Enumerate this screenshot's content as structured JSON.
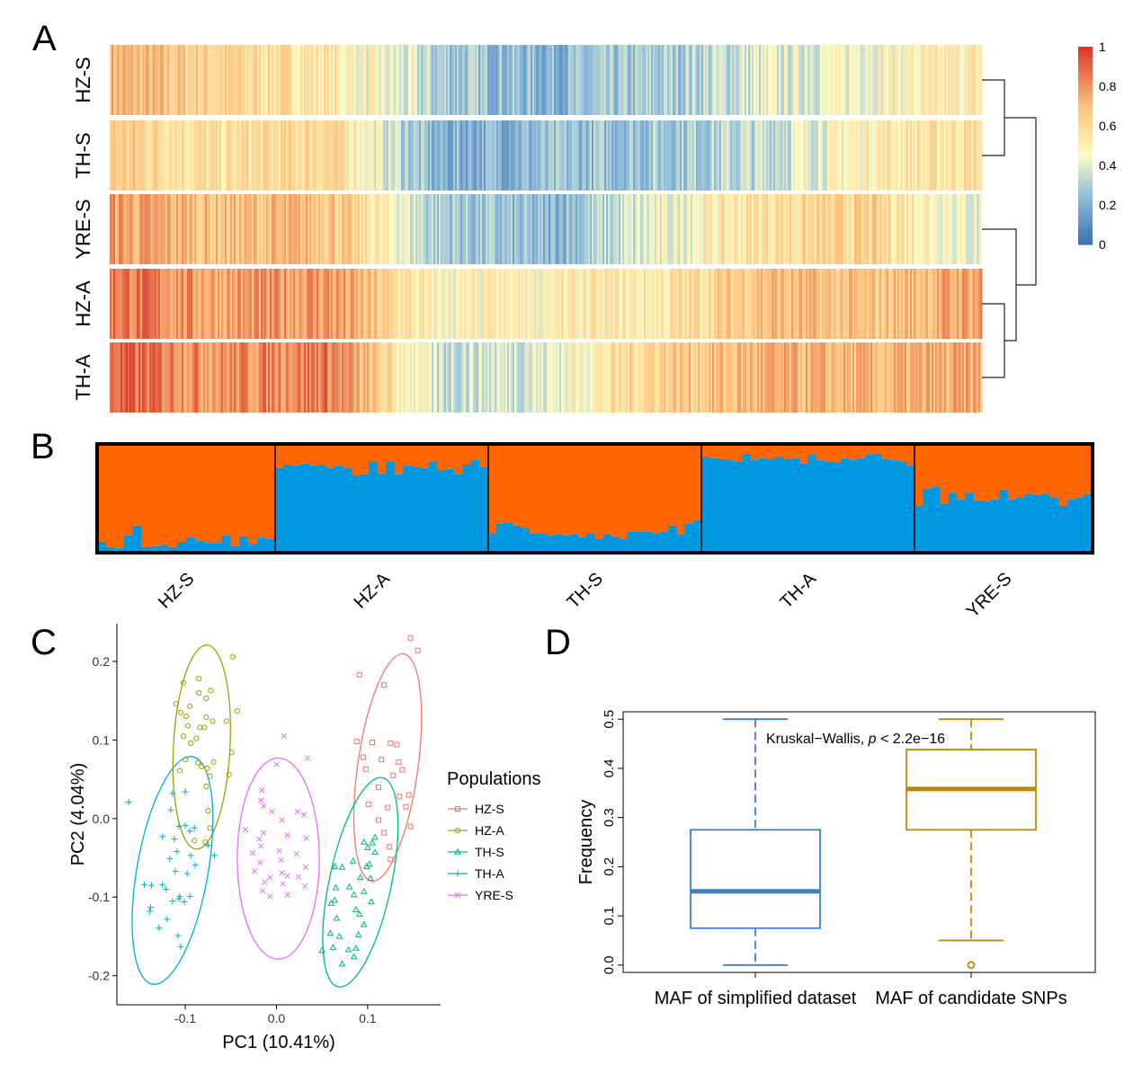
{
  "panel_letters": {
    "a": "A",
    "b": "B",
    "c": "C",
    "d": "D"
  },
  "chart_data": [
    {
      "panel": "A",
      "type": "heatmap",
      "rows": [
        "HZ-S",
        "TH-S",
        "YRE-S",
        "HZ-A",
        "TH-A"
      ],
      "colorbar": {
        "min": 0,
        "max": 1,
        "ticks": [
          "0",
          "0.2",
          "0.4",
          "0.6",
          "0.8",
          "1"
        ]
      },
      "colors": {
        "low": "#3b6fb0",
        "mid": "#fdfbc4",
        "high": "#d7352a"
      },
      "dendrogram": "((HZ-S, TH-S), (YRE-S, (HZ-A, TH-A)))",
      "segment_level_profiles": {
        "HZ-S": [
          0.72,
          0.62,
          0.54,
          0.3,
          0.22,
          0.28,
          0.38,
          0.46,
          0.52
        ],
        "TH-S": [
          0.66,
          0.55,
          0.62,
          0.2,
          0.24,
          0.28,
          0.34,
          0.52,
          0.58
        ],
        "YRE-S": [
          0.78,
          0.68,
          0.7,
          0.3,
          0.22,
          0.4,
          0.58,
          0.62,
          0.4
        ],
        "HZ-A": [
          0.88,
          0.76,
          0.8,
          0.46,
          0.5,
          0.52,
          0.7,
          0.66,
          0.78
        ],
        "TH-A": [
          0.9,
          0.8,
          0.86,
          0.36,
          0.4,
          0.64,
          0.72,
          0.7,
          0.74
        ]
      }
    },
    {
      "panel": "B",
      "type": "bar",
      "stacked": true,
      "groups": [
        "HZ-S",
        "HZ-A",
        "TH-S",
        "TH-A",
        "YRE-S"
      ],
      "series_colors": {
        "blue": "#0098e0",
        "orange": "#ff6600"
      },
      "blue_fraction": {
        "HZ-S": [
          0.1,
          0.05,
          0.04,
          0.16,
          0.25,
          0.05,
          0.06,
          0.07,
          0.05,
          0.1,
          0.14,
          0.11,
          0.09,
          0.09,
          0.16,
          0.06,
          0.15,
          0.08,
          0.14,
          0.13
        ],
        "HZ-A": [
          0.78,
          0.81,
          0.8,
          0.82,
          0.8,
          0.81,
          0.78,
          0.8,
          0.78,
          0.71,
          0.72,
          0.84,
          0.73,
          0.84,
          0.72,
          0.8,
          0.79,
          0.78,
          0.84,
          0.76,
          0.77,
          0.72,
          0.81,
          0.85,
          0.79
        ],
        "TH-S": [
          0.18,
          0.27,
          0.28,
          0.25,
          0.23,
          0.18,
          0.18,
          0.16,
          0.17,
          0.16,
          0.17,
          0.14,
          0.18,
          0.13,
          0.17,
          0.15,
          0.13,
          0.19,
          0.19,
          0.19,
          0.18,
          0.19,
          0.25,
          0.17,
          0.27,
          0.3
        ],
        "TH-A": [
          0.88,
          0.87,
          0.86,
          0.85,
          0.84,
          0.91,
          0.85,
          0.87,
          0.86,
          0.88,
          0.86,
          0.87,
          0.82,
          0.9,
          0.85,
          0.84,
          0.83,
          0.87,
          0.85,
          0.87,
          0.9,
          0.91,
          0.86,
          0.85,
          0.84,
          0.8
        ],
        "YRE-S": [
          0.43,
          0.59,
          0.61,
          0.45,
          0.55,
          0.49,
          0.55,
          0.48,
          0.47,
          0.49,
          0.58,
          0.49,
          0.51,
          0.54,
          0.53,
          0.54,
          0.51,
          0.43,
          0.49,
          0.51,
          0.54
        ]
      }
    },
    {
      "panel": "C",
      "type": "scatter",
      "xlabel": "PC1 (10.41%)",
      "ylabel": "PC2 (4.04%)",
      "xlim": [
        -0.175,
        0.18
      ],
      "ylim": [
        -0.237,
        0.248
      ],
      "xticks": [
        {
          "v": -0.1,
          "t": "-0.1"
        },
        {
          "v": 0,
          "t": "0.0"
        },
        {
          "v": 0.1,
          "t": "0.1"
        }
      ],
      "yticks": [
        {
          "v": -0.2,
          "t": "-0.2"
        },
        {
          "v": -0.1,
          "t": "-0.1"
        },
        {
          "v": 0,
          "t": "0.0"
        },
        {
          "v": 0.1,
          "t": "0.1"
        },
        {
          "v": 0.2,
          "t": "0.2"
        }
      ],
      "legend_title": "Populations",
      "legend_position": "right",
      "series": [
        {
          "name": "HZ-S",
          "color": "#f0756b",
          "marker": "square",
          "ellipse": {
            "cx": 0.122,
            "cy": 0.065,
            "rx": 0.033,
            "ry": 0.146,
            "angle": 8
          },
          "points": [
            [
              0.147,
              0.23
            ],
            [
              0.155,
              0.214
            ],
            [
              0.091,
              0.183
            ],
            [
              0.118,
              0.17
            ],
            [
              0.088,
              0.098
            ],
            [
              0.105,
              0.097
            ],
            [
              0.125,
              0.096
            ],
            [
              0.132,
              0.094
            ],
            [
              0.095,
              0.078
            ],
            [
              0.115,
              0.075
            ],
            [
              0.134,
              0.072
            ],
            [
              0.098,
              0.063
            ],
            [
              0.138,
              0.062
            ],
            [
              0.128,
              0.055
            ],
            [
              0.112,
              0.04
            ],
            [
              0.145,
              0.03
            ],
            [
              0.135,
              0.028
            ],
            [
              0.101,
              0.018
            ],
            [
              0.122,
              0.014
            ],
            [
              0.142,
              0.015
            ],
            [
              0.112,
              -0.002
            ],
            [
              0.147,
              -0.01
            ],
            [
              0.118,
              -0.018
            ],
            [
              0.124,
              -0.036
            ],
            [
              0.125,
              -0.052
            ]
          ]
        },
        {
          "name": "HZ-A",
          "color": "#9fa000",
          "marker": "circle",
          "ellipse": {
            "cx": -0.082,
            "cy": 0.091,
            "rx": 0.031,
            "ry": 0.13,
            "angle": 3
          },
          "points": [
            [
              -0.048,
              0.206
            ],
            [
              -0.085,
              0.178
            ],
            [
              -0.102,
              0.173
            ],
            [
              -0.072,
              0.163
            ],
            [
              -0.085,
              0.16
            ],
            [
              -0.077,
              0.153
            ],
            [
              -0.11,
              0.146
            ],
            [
              -0.095,
              0.143
            ],
            [
              -0.105,
              0.135
            ],
            [
              -0.043,
              0.137
            ],
            [
              -0.099,
              0.13
            ],
            [
              -0.077,
              0.129
            ],
            [
              -0.07,
              0.124
            ],
            [
              -0.055,
              0.124
            ],
            [
              -0.097,
              0.118
            ],
            [
              -0.084,
              0.116
            ],
            [
              -0.079,
              0.116
            ],
            [
              -0.102,
              0.105
            ],
            [
              -0.088,
              0.102
            ],
            [
              -0.094,
              0.096
            ],
            [
              -0.049,
              0.084
            ],
            [
              -0.1,
              0.075
            ],
            [
              -0.069,
              0.072
            ],
            [
              -0.086,
              0.071
            ],
            [
              -0.082,
              0.066
            ],
            [
              -0.076,
              0.064
            ],
            [
              -0.106,
              0.061
            ],
            [
              -0.052,
              0.056
            ],
            [
              -0.073,
              0.054
            ],
            [
              -0.077,
              0.041
            ],
            [
              -0.075,
              0.01
            ],
            [
              -0.073,
              -0.012
            ],
            [
              -0.09,
              -0.028
            ],
            [
              -0.078,
              -0.03
            ]
          ]
        },
        {
          "name": "TH-S",
          "color": "#00ba78",
          "marker": "triangle",
          "ellipse": {
            "cx": 0.092,
            "cy": -0.081,
            "rx": 0.034,
            "ry": 0.136,
            "angle": 12
          },
          "points": [
            [
              0.108,
              -0.024
            ],
            [
              0.096,
              -0.03
            ],
            [
              0.105,
              -0.031
            ],
            [
              0.1,
              -0.037
            ],
            [
              0.108,
              -0.043
            ],
            [
              0.084,
              -0.054
            ],
            [
              0.102,
              -0.058
            ],
            [
              0.064,
              -0.061
            ],
            [
              0.099,
              -0.061
            ],
            [
              0.072,
              -0.062
            ],
            [
              0.092,
              -0.075
            ],
            [
              0.103,
              -0.076
            ],
            [
              0.08,
              -0.087
            ],
            [
              0.065,
              -0.088
            ],
            [
              0.096,
              -0.093
            ],
            [
              0.085,
              -0.097
            ],
            [
              0.064,
              -0.104
            ],
            [
              0.104,
              -0.106
            ],
            [
              0.06,
              -0.108
            ],
            [
              0.087,
              -0.116
            ],
            [
              0.091,
              -0.122
            ],
            [
              0.066,
              -0.127
            ],
            [
              0.096,
              -0.135
            ],
            [
              0.059,
              -0.146
            ],
            [
              0.09,
              -0.148
            ],
            [
              0.069,
              -0.15
            ],
            [
              0.062,
              -0.164
            ],
            [
              0.079,
              -0.167
            ],
            [
              0.087,
              -0.165
            ],
            [
              0.05,
              -0.168
            ],
            [
              0.085,
              -0.176
            ],
            [
              0.072,
              -0.185
            ]
          ]
        },
        {
          "name": "TH-A",
          "color": "#00aed0",
          "marker": "plus",
          "ellipse": {
            "cx": -0.114,
            "cy": -0.066,
            "rx": 0.039,
            "ry": 0.147,
            "angle": 10
          },
          "points": [
            [
              -0.162,
              0.021
            ],
            [
              -0.1,
              0.034
            ],
            [
              -0.114,
              0.032
            ],
            [
              -0.116,
              0.011
            ],
            [
              -0.1,
              -0.009
            ],
            [
              -0.09,
              -0.012
            ],
            [
              -0.107,
              -0.01
            ],
            [
              -0.095,
              -0.016
            ],
            [
              -0.125,
              -0.023
            ],
            [
              -0.112,
              -0.026
            ],
            [
              -0.075,
              -0.034
            ],
            [
              -0.109,
              -0.042
            ],
            [
              -0.094,
              -0.047
            ],
            [
              -0.068,
              -0.047
            ],
            [
              -0.117,
              -0.051
            ],
            [
              -0.089,
              -0.059
            ],
            [
              -0.111,
              -0.067
            ],
            [
              -0.098,
              -0.07
            ],
            [
              -0.137,
              -0.085
            ],
            [
              -0.125,
              -0.084
            ],
            [
              -0.145,
              -0.084
            ],
            [
              -0.121,
              -0.09
            ],
            [
              -0.106,
              -0.099
            ],
            [
              -0.095,
              -0.099
            ],
            [
              -0.107,
              -0.102
            ],
            [
              -0.114,
              -0.105
            ],
            [
              -0.101,
              -0.106
            ],
            [
              -0.138,
              -0.113
            ],
            [
              -0.139,
              -0.118
            ],
            [
              -0.12,
              -0.128
            ],
            [
              -0.129,
              -0.139
            ],
            [
              -0.108,
              -0.149
            ],
            [
              -0.105,
              -0.163
            ]
          ]
        },
        {
          "name": "YRE-S",
          "color": "#e86df2",
          "marker": "cross",
          "ellipse": {
            "cx": 0.002,
            "cy": -0.051,
            "rx": 0.045,
            "ry": 0.128,
            "angle": 0
          },
          "points": [
            [
              0.008,
              0.105
            ],
            [
              0.034,
              0.077
            ],
            [
              0.0,
              0.069
            ],
            [
              -0.016,
              0.036
            ],
            [
              -0.017,
              0.023
            ],
            [
              -0.014,
              0.016
            ],
            [
              -0.005,
              0.009
            ],
            [
              0.023,
              0.009
            ],
            [
              0.03,
              0.005
            ],
            [
              0.006,
              -0.002
            ],
            [
              -0.034,
              -0.014
            ],
            [
              -0.014,
              -0.018
            ],
            [
              0.012,
              -0.021
            ],
            [
              0.033,
              -0.025
            ],
            [
              -0.019,
              -0.026
            ],
            [
              -0.017,
              -0.035
            ],
            [
              0.003,
              -0.041
            ],
            [
              -0.026,
              -0.044
            ],
            [
              0.022,
              -0.045
            ],
            [
              0.005,
              -0.053
            ],
            [
              -0.018,
              -0.056
            ],
            [
              0.032,
              -0.062
            ],
            [
              -0.024,
              -0.067
            ],
            [
              0.006,
              -0.069
            ],
            [
              0.012,
              -0.073
            ],
            [
              0.024,
              -0.074
            ],
            [
              -0.007,
              -0.075
            ],
            [
              -0.013,
              -0.081
            ],
            [
              0.007,
              -0.083
            ],
            [
              0.031,
              -0.086
            ],
            [
              -0.015,
              -0.092
            ],
            [
              0.012,
              -0.097
            ],
            [
              -0.007,
              -0.099
            ]
          ]
        }
      ]
    },
    {
      "panel": "D",
      "type": "box",
      "ylabel": "Frequency",
      "ylim": [
        -0.015,
        0.515
      ],
      "yticks": [
        {
          "v": 0,
          "t": "0.0"
        },
        {
          "v": 0.1,
          "t": "0.1"
        },
        {
          "v": 0.2,
          "t": "0.2"
        },
        {
          "v": 0.3,
          "t": "0.3"
        },
        {
          "v": 0.4,
          "t": "0.4"
        },
        {
          "v": 0.5,
          "t": "0.5"
        }
      ],
      "categories": [
        "MAF of simplified dataset",
        "MAF of candidate SNPs"
      ],
      "boxes": [
        {
          "color": "#3d7ec4",
          "whisker_low": 0.0,
          "q1": 0.075,
          "median": 0.15,
          "q3": 0.275,
          "whisker_high": 0.5,
          "outliers": []
        },
        {
          "color": "#b88a0a",
          "whisker_low": 0.05,
          "q1": 0.275,
          "median": 0.358,
          "q3": 0.438,
          "whisker_high": 0.5,
          "outliers": [
            0.0
          ]
        }
      ],
      "annotation": {
        "text": "Kruskal−Wallis, ",
        "p_symbol": "p",
        "rest": " < 2.2e−16"
      }
    }
  ]
}
